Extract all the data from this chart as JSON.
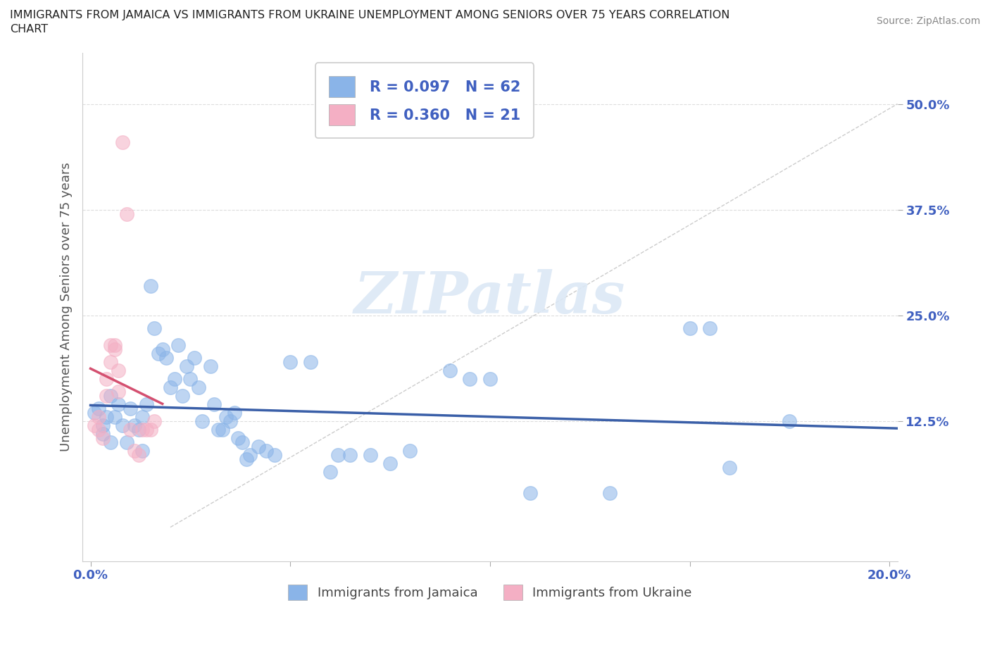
{
  "title_line1": "IMMIGRANTS FROM JAMAICA VS IMMIGRANTS FROM UKRAINE UNEMPLOYMENT AMONG SENIORS OVER 75 YEARS CORRELATION",
  "title_line2": "CHART",
  "source": "Source: ZipAtlas.com",
  "ylabel": "Unemployment Among Seniors over 75 years",
  "xlabel": "",
  "xlim": [
    -0.002,
    0.202
  ],
  "ylim": [
    -0.04,
    0.56
  ],
  "xticks": [
    0.0,
    0.05,
    0.1,
    0.15,
    0.2
  ],
  "xtick_labels": [
    "0.0%",
    "",
    "",
    "",
    "20.0%"
  ],
  "yticks": [
    0.125,
    0.25,
    0.375,
    0.5
  ],
  "ytick_labels": [
    "12.5%",
    "25.0%",
    "37.5%",
    "50.0%"
  ],
  "jamaica_color": "#8ab4e8",
  "ukraine_color": "#f4afc4",
  "jamaica_R": 0.097,
  "jamaica_N": 62,
  "ukraine_R": 0.36,
  "ukraine_N": 21,
  "jamaica_trend_color": "#3a5fa8",
  "ukraine_trend_color": "#d45070",
  "diagonal_color": "#cccccc",
  "background_color": "#ffffff",
  "grid_color": "#dddddd",
  "legend_label_jamaica": "Immigrants from Jamaica",
  "legend_label_ukraine": "Immigrants from Ukraine",
  "jamaica_scatter": [
    [
      0.001,
      0.135
    ],
    [
      0.002,
      0.14
    ],
    [
      0.003,
      0.12
    ],
    [
      0.003,
      0.11
    ],
    [
      0.004,
      0.13
    ],
    [
      0.005,
      0.155
    ],
    [
      0.005,
      0.1
    ],
    [
      0.006,
      0.13
    ],
    [
      0.007,
      0.145
    ],
    [
      0.008,
      0.12
    ],
    [
      0.009,
      0.1
    ],
    [
      0.01,
      0.14
    ],
    [
      0.011,
      0.12
    ],
    [
      0.012,
      0.115
    ],
    [
      0.013,
      0.09
    ],
    [
      0.013,
      0.13
    ],
    [
      0.014,
      0.145
    ],
    [
      0.015,
      0.285
    ],
    [
      0.016,
      0.235
    ],
    [
      0.017,
      0.205
    ],
    [
      0.018,
      0.21
    ],
    [
      0.019,
      0.2
    ],
    [
      0.02,
      0.165
    ],
    [
      0.021,
      0.175
    ],
    [
      0.022,
      0.215
    ],
    [
      0.023,
      0.155
    ],
    [
      0.024,
      0.19
    ],
    [
      0.025,
      0.175
    ],
    [
      0.026,
      0.2
    ],
    [
      0.027,
      0.165
    ],
    [
      0.028,
      0.125
    ],
    [
      0.03,
      0.19
    ],
    [
      0.031,
      0.145
    ],
    [
      0.032,
      0.115
    ],
    [
      0.033,
      0.115
    ],
    [
      0.034,
      0.13
    ],
    [
      0.035,
      0.125
    ],
    [
      0.036,
      0.135
    ],
    [
      0.037,
      0.105
    ],
    [
      0.038,
      0.1
    ],
    [
      0.039,
      0.08
    ],
    [
      0.04,
      0.085
    ],
    [
      0.042,
      0.095
    ],
    [
      0.044,
      0.09
    ],
    [
      0.046,
      0.085
    ],
    [
      0.05,
      0.195
    ],
    [
      0.055,
      0.195
    ],
    [
      0.06,
      0.065
    ],
    [
      0.062,
      0.085
    ],
    [
      0.065,
      0.085
    ],
    [
      0.07,
      0.085
    ],
    [
      0.075,
      0.075
    ],
    [
      0.08,
      0.09
    ],
    [
      0.09,
      0.185
    ],
    [
      0.095,
      0.175
    ],
    [
      0.1,
      0.175
    ],
    [
      0.11,
      0.04
    ],
    [
      0.13,
      0.04
    ],
    [
      0.15,
      0.235
    ],
    [
      0.155,
      0.235
    ],
    [
      0.16,
      0.07
    ],
    [
      0.175,
      0.125
    ]
  ],
  "ukraine_scatter": [
    [
      0.001,
      0.12
    ],
    [
      0.002,
      0.115
    ],
    [
      0.002,
      0.13
    ],
    [
      0.003,
      0.105
    ],
    [
      0.004,
      0.155
    ],
    [
      0.004,
      0.175
    ],
    [
      0.005,
      0.195
    ],
    [
      0.005,
      0.215
    ],
    [
      0.006,
      0.21
    ],
    [
      0.006,
      0.215
    ],
    [
      0.007,
      0.185
    ],
    [
      0.007,
      0.16
    ],
    [
      0.008,
      0.455
    ],
    [
      0.009,
      0.37
    ],
    [
      0.01,
      0.115
    ],
    [
      0.011,
      0.09
    ],
    [
      0.012,
      0.085
    ],
    [
      0.013,
      0.115
    ],
    [
      0.014,
      0.115
    ],
    [
      0.015,
      0.115
    ],
    [
      0.016,
      0.125
    ]
  ]
}
